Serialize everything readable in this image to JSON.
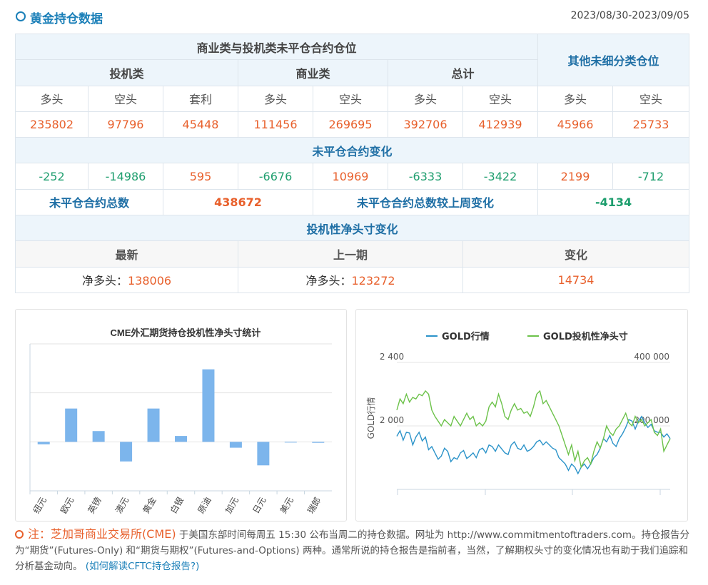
{
  "header": {
    "title": "黄金持仓数据",
    "date_range": "2023/08/30-2023/09/05"
  },
  "table": {
    "group_title": "商业类与投机类未平仓合约仓位",
    "other_title": "其他未细分类仓位",
    "categories": {
      "spec": "投机类",
      "comm": "商业类",
      "total": "总计"
    },
    "col_labels": [
      "多头",
      "空头",
      "套利",
      "多头",
      "空头",
      "多头",
      "空头",
      "多头",
      "空头"
    ],
    "positions": [
      "235802",
      "97796",
      "45448",
      "111456",
      "269695",
      "392706",
      "412939",
      "45966",
      "25733"
    ],
    "change_title": "未平仓合约变化",
    "changes": [
      "-252",
      "-14986",
      "595",
      "-6676",
      "10969",
      "-6333",
      "-3422",
      "2199",
      "-712"
    ],
    "oi_total_label": "未平仓合约总数",
    "oi_total_value": "438672",
    "oi_change_label": "未平仓合约总数较上周变化",
    "oi_change_value": "-4134",
    "net_title": "投机性净头寸变化",
    "net_headers": [
      "最新",
      "上一期",
      "变化"
    ],
    "net_prefix": "净多头：",
    "net_latest": "138006",
    "net_previous": "123272",
    "net_change": "14734"
  },
  "colors": {
    "accent": "#1a7fb8",
    "red": "#e8602c",
    "green": "#1e9e6e",
    "bar": "#7cb5ec",
    "gold_line": "#2b93c9",
    "net_line": "#6cc24a"
  },
  "chart_data": [
    {
      "type": "bar",
      "title": "CME外汇期货持仓投机性净头寸统计",
      "categories": [
        "纽元",
        "欧元",
        "英镑",
        "澳元",
        "黄金",
        "白银",
        "原油",
        "加元",
        "日元",
        "美元",
        "瑞郎"
      ],
      "values": [
        -5,
        68,
        22,
        -40,
        68,
        12,
        148,
        -12,
        -48,
        0,
        -2
      ],
      "ylim": [
        -100,
        200
      ],
      "grid": true
    },
    {
      "type": "line",
      "legend": [
        "GOLD行情",
        "GOLD投机性净头寸"
      ],
      "legend_position": "top",
      "ylabel_left": "GOLD行情",
      "y_left_ticks": [
        "2 400",
        "2 000"
      ],
      "y_right_ticks": [
        "400 000",
        "200 000"
      ],
      "y_left_range": [
        1600,
        2400
      ],
      "y_right_range": [
        0,
        400000
      ],
      "series": [
        {
          "name": "GOLD行情",
          "values": [
            1935,
            1970,
            1910,
            1960,
            1955,
            1880,
            1930,
            1960,
            1905,
            1930,
            1850,
            1870,
            1830,
            1790,
            1810,
            1860,
            1840,
            1775,
            1800,
            1790,
            1830,
            1845,
            1795,
            1810,
            1830,
            1800,
            1850,
            1860,
            1830,
            1880,
            1870,
            1840,
            1880,
            1855,
            1830,
            1820,
            1880,
            1900,
            1860,
            1850,
            1880,
            1840,
            1850,
            1870,
            1900,
            1910,
            1880,
            1900,
            1880,
            1860,
            1850,
            1800,
            1780,
            1760,
            1720,
            1760,
            1740,
            1700,
            1740,
            1760,
            1730,
            1760,
            1800,
            1820,
            1860,
            1920,
            1900,
            1940,
            1890,
            1870,
            1920,
            1950,
            1990,
            2040,
            2030,
            1980,
            2030,
            2060,
            2020,
            1990,
            2010,
            1970,
            1960,
            1960,
            1930,
            1950,
            1920
          ]
        },
        {
          "name": "GOLD投机性净头寸",
          "values": [
            250000,
            285000,
            270000,
            300000,
            275000,
            290000,
            285000,
            300000,
            295000,
            310000,
            300000,
            250000,
            230000,
            215000,
            200000,
            220000,
            210000,
            200000,
            230000,
            215000,
            200000,
            220000,
            240000,
            220000,
            230000,
            200000,
            210000,
            200000,
            215000,
            260000,
            275000,
            260000,
            300000,
            270000,
            230000,
            220000,
            250000,
            270000,
            250000,
            255000,
            240000,
            245000,
            230000,
            260000,
            300000,
            310000,
            270000,
            280000,
            260000,
            240000,
            220000,
            200000,
            170000,
            140000,
            110000,
            140000,
            90000,
            120000,
            70000,
            90000,
            100000,
            80000,
            120000,
            150000,
            130000,
            160000,
            200000,
            180000,
            170000,
            190000,
            200000,
            220000,
            240000,
            210000,
            200000,
            230000,
            210000,
            220000,
            200000,
            210000,
            220000,
            180000,
            170000,
            190000,
            120000,
            140000,
            160000
          ]
        }
      ]
    }
  ],
  "note": {
    "label": "注：芝加哥商业交易所(CME)",
    "text": " 于美国东部时间每周五 15:30 公布当周二的持仓数据。网址为 http://www.commitmentoftraders.com。持仓报告分为“期货”(Futures-Only) 和“期货与期权”(Futures-and-Options) 两种。通常所说的持仓报告是指前者，当然，了解期权头寸的变化情况也有助于我们追踪和分析基金动向。",
    "link": "(如何解读CFTC持仓报告?)"
  }
}
